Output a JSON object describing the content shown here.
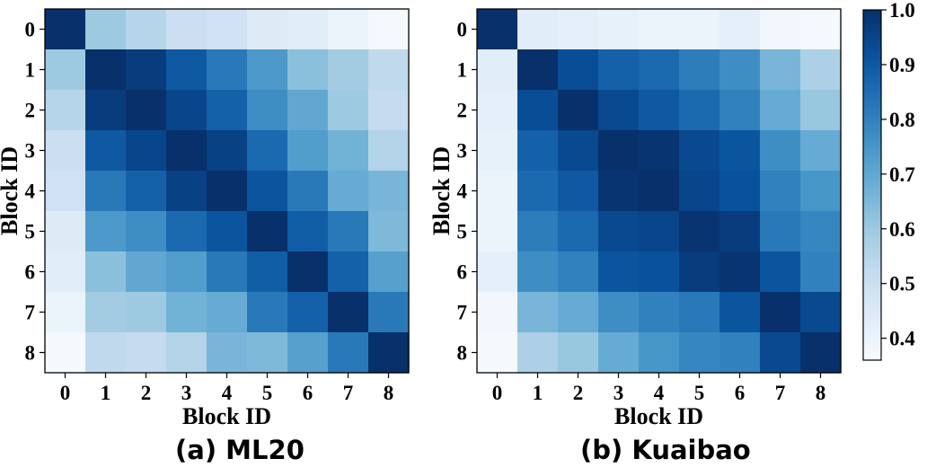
{
  "chart_data": {
    "type": "heatmap",
    "colorbar": {
      "min": 0.36,
      "max": 1.0,
      "ticks": [
        "0.4",
        "0.5",
        "0.6",
        "0.7",
        "0.8",
        "0.9",
        "1.0"
      ],
      "tick_values": [
        0.4,
        0.5,
        0.6,
        0.7,
        0.8,
        0.9,
        1.0
      ],
      "colormap": "Blues"
    },
    "panels": [
      {
        "caption": "(a) ML20",
        "xlabel": "Block ID",
        "ylabel": "Block ID",
        "x_ticks": [
          "0",
          "1",
          "2",
          "3",
          "4",
          "5",
          "6",
          "7",
          "8"
        ],
        "y_ticks": [
          "0",
          "1",
          "2",
          "3",
          "4",
          "5",
          "6",
          "7",
          "8"
        ],
        "matrix": [
          [
            1.0,
            0.6,
            0.55,
            0.5,
            0.49,
            0.44,
            0.43,
            0.4,
            0.37
          ],
          [
            0.6,
            1.0,
            0.97,
            0.9,
            0.82,
            0.74,
            0.63,
            0.59,
            0.53
          ],
          [
            0.55,
            0.97,
            1.0,
            0.95,
            0.88,
            0.77,
            0.7,
            0.6,
            0.52
          ],
          [
            0.5,
            0.9,
            0.95,
            1.0,
            0.96,
            0.86,
            0.73,
            0.67,
            0.56
          ],
          [
            0.49,
            0.82,
            0.88,
            0.96,
            1.0,
            0.91,
            0.82,
            0.69,
            0.66
          ],
          [
            0.44,
            0.74,
            0.77,
            0.86,
            0.91,
            1.0,
            0.89,
            0.82,
            0.65
          ],
          [
            0.43,
            0.63,
            0.7,
            0.73,
            0.82,
            0.89,
            1.0,
            0.88,
            0.72
          ],
          [
            0.4,
            0.59,
            0.6,
            0.67,
            0.69,
            0.82,
            0.88,
            1.0,
            0.82
          ],
          [
            0.37,
            0.53,
            0.52,
            0.56,
            0.66,
            0.65,
            0.72,
            0.82,
            1.0
          ]
        ]
      },
      {
        "caption": "(b) Kuaibao",
        "xlabel": "Block ID",
        "ylabel": "Block ID",
        "x_ticks": [
          "0",
          "1",
          "2",
          "3",
          "4",
          "5",
          "6",
          "7",
          "8"
        ],
        "y_ticks": [
          "0",
          "1",
          "2",
          "3",
          "4",
          "5",
          "6",
          "7",
          "8"
        ],
        "matrix": [
          [
            1.0,
            0.43,
            0.42,
            0.41,
            0.4,
            0.4,
            0.42,
            0.38,
            0.37
          ],
          [
            0.43,
            1.0,
            0.93,
            0.88,
            0.86,
            0.81,
            0.77,
            0.66,
            0.57
          ],
          [
            0.42,
            0.93,
            1.0,
            0.94,
            0.9,
            0.86,
            0.8,
            0.69,
            0.61
          ],
          [
            0.41,
            0.88,
            0.94,
            1.0,
            0.99,
            0.94,
            0.91,
            0.77,
            0.69
          ],
          [
            0.4,
            0.86,
            0.9,
            0.99,
            1.0,
            0.95,
            0.92,
            0.8,
            0.75
          ],
          [
            0.4,
            0.81,
            0.86,
            0.94,
            0.95,
            0.99,
            0.97,
            0.82,
            0.79
          ],
          [
            0.42,
            0.77,
            0.8,
            0.91,
            0.92,
            0.97,
            0.99,
            0.91,
            0.8
          ],
          [
            0.38,
            0.66,
            0.69,
            0.77,
            0.8,
            0.82,
            0.91,
            1.0,
            0.94
          ],
          [
            0.37,
            0.57,
            0.61,
            0.69,
            0.75,
            0.79,
            0.8,
            0.94,
            1.0
          ]
        ]
      }
    ]
  }
}
